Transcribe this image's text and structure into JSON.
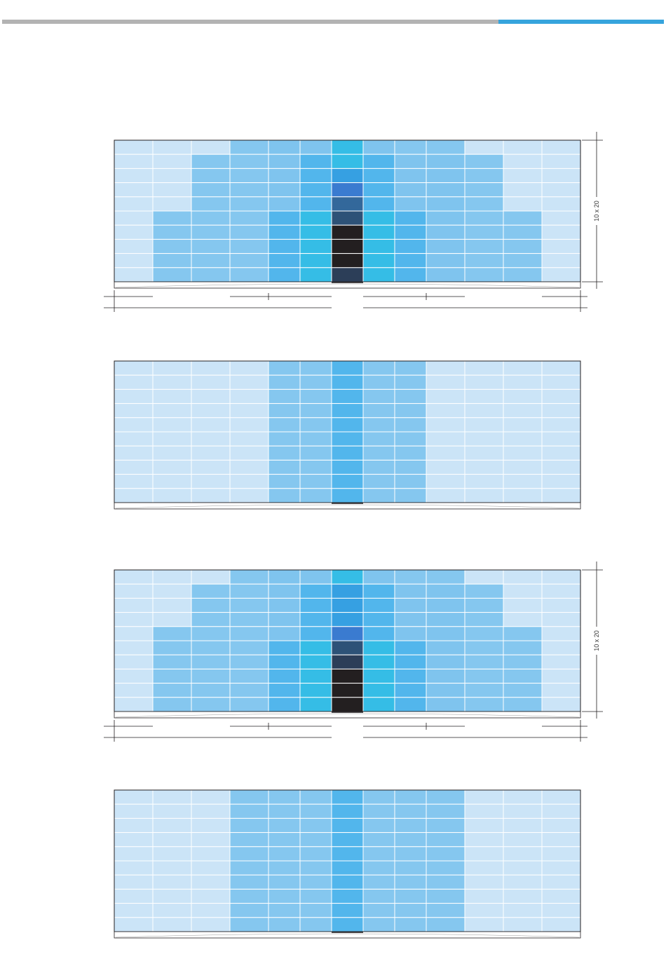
{
  "page": {
    "accent_gray": "#b3b3b3",
    "accent_blue": "#36a4dd"
  },
  "palette": {
    "0": "#cbe4f7",
    "1": "#85c7ef",
    "2": "#7fc4ee",
    "3": "#52b6ec",
    "4": "#35bde6",
    "5": "#36a0e2",
    "6": "#3a7bd0",
    "7": "#33689b",
    "8": "#2d5277",
    "9": "#2c3e58",
    "10": "#231f20",
    "11": "#29384e"
  },
  "diagrams": [
    {
      "id": "diagram-1",
      "dimension_label": "10 x 20",
      "has_dimensions": true,
      "grid": [
        [
          0,
          0,
          0,
          1,
          2,
          2,
          4,
          2,
          1,
          1,
          0,
          0,
          0
        ],
        [
          0,
          0,
          1,
          1,
          2,
          3,
          4,
          3,
          2,
          2,
          1,
          0,
          0
        ],
        [
          0,
          0,
          1,
          1,
          2,
          3,
          5,
          3,
          2,
          2,
          1,
          0,
          0
        ],
        [
          0,
          0,
          1,
          1,
          2,
          3,
          6,
          3,
          2,
          2,
          1,
          0,
          0
        ],
        [
          0,
          0,
          1,
          1,
          2,
          3,
          7,
          3,
          2,
          2,
          1,
          0,
          0
        ],
        [
          0,
          1,
          1,
          1,
          3,
          4,
          8,
          4,
          3,
          2,
          1,
          1,
          0
        ],
        [
          0,
          1,
          1,
          1,
          3,
          4,
          10,
          4,
          3,
          2,
          1,
          1,
          0
        ],
        [
          0,
          1,
          1,
          1,
          3,
          4,
          10,
          4,
          3,
          2,
          1,
          1,
          0
        ],
        [
          0,
          1,
          1,
          1,
          3,
          4,
          10,
          4,
          3,
          2,
          1,
          1,
          0
        ],
        [
          0,
          1,
          1,
          1,
          3,
          4,
          9,
          4,
          3,
          2,
          1,
          1,
          0
        ]
      ]
    },
    {
      "id": "diagram-2",
      "dimension_label": "",
      "has_dimensions": false,
      "grid": [
        [
          0,
          0,
          0,
          0,
          1,
          1,
          3,
          1,
          1,
          0,
          0,
          0,
          0
        ],
        [
          0,
          0,
          0,
          0,
          1,
          1,
          3,
          1,
          1,
          0,
          0,
          0,
          0
        ],
        [
          0,
          0,
          0,
          0,
          1,
          1,
          3,
          1,
          1,
          0,
          0,
          0,
          0
        ],
        [
          0,
          0,
          0,
          0,
          1,
          1,
          3,
          1,
          1,
          0,
          0,
          0,
          0
        ],
        [
          0,
          0,
          0,
          0,
          1,
          1,
          3,
          1,
          1,
          0,
          0,
          0,
          0
        ],
        [
          0,
          0,
          0,
          0,
          1,
          1,
          3,
          1,
          1,
          0,
          0,
          0,
          0
        ],
        [
          0,
          0,
          0,
          0,
          1,
          1,
          3,
          1,
          1,
          0,
          0,
          0,
          0
        ],
        [
          0,
          0,
          0,
          0,
          1,
          1,
          3,
          1,
          1,
          0,
          0,
          0,
          0
        ],
        [
          0,
          0,
          0,
          0,
          1,
          1,
          3,
          1,
          1,
          0,
          0,
          0,
          0
        ],
        [
          0,
          0,
          0,
          0,
          1,
          1,
          3,
          1,
          1,
          0,
          0,
          0,
          0
        ]
      ]
    },
    {
      "id": "diagram-3",
      "dimension_label": "10 x 20",
      "has_dimensions": true,
      "grid": [
        [
          0,
          0,
          0,
          1,
          2,
          2,
          4,
          2,
          1,
          1,
          0,
          0,
          0
        ],
        [
          0,
          0,
          1,
          1,
          2,
          3,
          5,
          3,
          2,
          2,
          1,
          0,
          0
        ],
        [
          0,
          0,
          1,
          1,
          2,
          3,
          5,
          3,
          2,
          2,
          1,
          0,
          0
        ],
        [
          0,
          0,
          1,
          1,
          2,
          3,
          5,
          3,
          2,
          2,
          1,
          0,
          0
        ],
        [
          0,
          1,
          1,
          1,
          2,
          3,
          6,
          3,
          2,
          2,
          1,
          1,
          0
        ],
        [
          0,
          1,
          1,
          1,
          3,
          4,
          8,
          4,
          3,
          2,
          1,
          1,
          0
        ],
        [
          0,
          1,
          1,
          1,
          3,
          4,
          9,
          4,
          3,
          2,
          1,
          1,
          0
        ],
        [
          0,
          1,
          1,
          1,
          3,
          4,
          10,
          4,
          3,
          2,
          1,
          1,
          0
        ],
        [
          0,
          1,
          1,
          1,
          3,
          4,
          10,
          4,
          3,
          2,
          1,
          1,
          0
        ],
        [
          0,
          1,
          1,
          1,
          3,
          4,
          10,
          4,
          3,
          2,
          1,
          1,
          0
        ]
      ]
    },
    {
      "id": "diagram-4",
      "dimension_label": "",
      "has_dimensions": false,
      "grid": [
        [
          0,
          0,
          0,
          1,
          1,
          1,
          3,
          1,
          1,
          1,
          0,
          0,
          0
        ],
        [
          0,
          0,
          0,
          1,
          1,
          1,
          3,
          1,
          1,
          1,
          0,
          0,
          0
        ],
        [
          0,
          0,
          0,
          1,
          1,
          1,
          3,
          1,
          1,
          1,
          0,
          0,
          0
        ],
        [
          0,
          0,
          0,
          1,
          1,
          1,
          3,
          1,
          1,
          1,
          0,
          0,
          0
        ],
        [
          0,
          0,
          0,
          1,
          1,
          1,
          3,
          1,
          1,
          1,
          0,
          0,
          0
        ],
        [
          0,
          0,
          0,
          1,
          1,
          1,
          3,
          1,
          1,
          1,
          0,
          0,
          0
        ],
        [
          0,
          0,
          0,
          1,
          1,
          1,
          3,
          1,
          1,
          1,
          0,
          0,
          0
        ],
        [
          0,
          0,
          0,
          1,
          1,
          1,
          3,
          1,
          1,
          1,
          0,
          0,
          0
        ],
        [
          0,
          0,
          0,
          1,
          1,
          1,
          3,
          1,
          1,
          1,
          0,
          0,
          0
        ],
        [
          0,
          0,
          0,
          1,
          1,
          1,
          3,
          1,
          1,
          1,
          0,
          0,
          0
        ]
      ]
    }
  ]
}
